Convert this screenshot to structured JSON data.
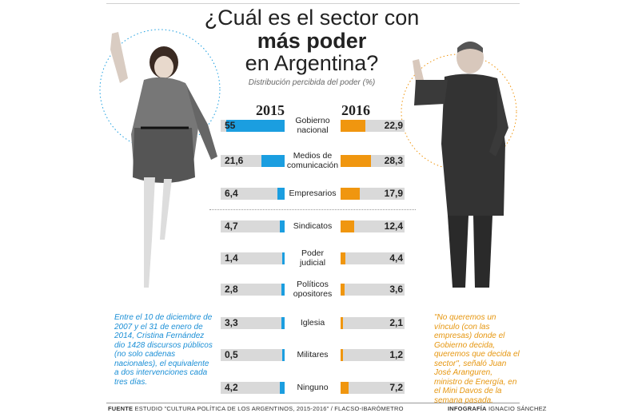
{
  "title": {
    "line1": "¿Cuál es el sector con",
    "line2": "más poder",
    "line3": "en Argentina?"
  },
  "subtitle": "Distribución percibida del poder (%)",
  "colors": {
    "y2015": "#1b9ee0",
    "y2016": "#f0960f",
    "track": "#d9d9d9"
  },
  "chart_data": {
    "type": "bar",
    "categories": [
      "Gobierno nacional",
      "Medios de comunicación",
      "Empresarios",
      "Sindicatos",
      "Poder judicial",
      "Políticos opositores",
      "Iglesia",
      "Militares",
      "Ninguno"
    ],
    "series": [
      {
        "name": "2015",
        "values": [
          55,
          21.6,
          6.4,
          4.7,
          1.4,
          2.8,
          3.3,
          0.5,
          4.2
        ]
      },
      {
        "name": "2016",
        "values": [
          22.9,
          28.3,
          17.9,
          12.4,
          4.4,
          3.6,
          2.1,
          1.2,
          7.2
        ]
      }
    ],
    "value_labels_2015": [
      "55",
      "21,6",
      "6,4",
      "4,7",
      "1,4",
      "2,8",
      "3,3",
      "0,5",
      "4,2"
    ],
    "value_labels_2016": [
      "22,9",
      "28,3",
      "17,9",
      "12,4",
      "4,4",
      "3,6",
      "2,1",
      "1,2",
      "7,2"
    ],
    "row_labels": [
      [
        "Gobierno",
        "nacional"
      ],
      [
        "Medios de",
        "comunicación"
      ],
      [
        "Empresarios"
      ],
      [
        "Sindicatos"
      ],
      [
        "Poder",
        "judicial"
      ],
      [
        "Políticos",
        "opositores"
      ],
      [
        "Iglesia"
      ],
      [
        "Militares"
      ],
      [
        "Ninguno"
      ]
    ]
  },
  "note_left": "Entre el 10 de diciembre de 2007 y el 31 de enero de 2014, Cristina Fernández dio 1428 discursos públicos (no solo cadenas nacionales), el equivalente a dos intervenciones cada tres días.",
  "note_right": "\"No queremos un vínculo (con las empresas) donde el Gobierno decida, queremos que decida el sector\", señaló Juan José Aranguren, ministro de Energía, en el Mini Davos de la semana pasada.",
  "footer": {
    "source_label": "FUENTE",
    "source_text": "ESTUDIO \"CULTURA POLÍTICA DE LOS ARGENTINOS, 2015-2016\" / FLACSO-IBARÓMETRO",
    "credit_label": "INFOGRAFÍA",
    "credit_text": "IGNACIO SÁNCHEZ"
  }
}
